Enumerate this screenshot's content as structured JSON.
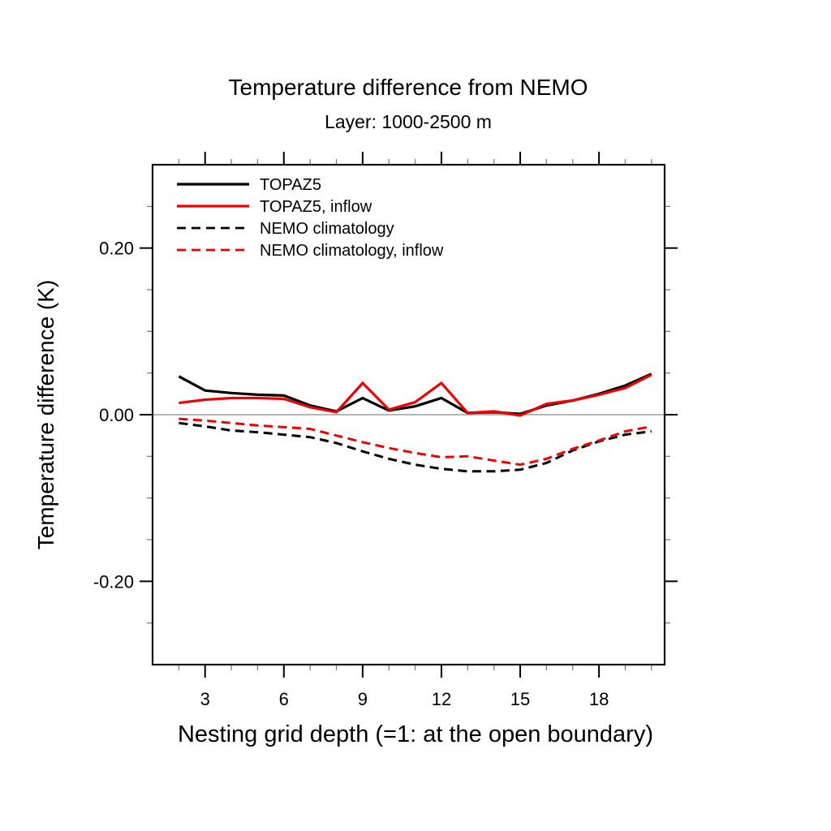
{
  "title": "Temperature difference from NEMO",
  "subtitle": "Layer: 1000-2500 m",
  "xlabel": "Nesting grid depth (=1: at the open boundary)",
  "ylabel": "Temperature difference (K)",
  "colors": {
    "black_series": "#000000",
    "red_series": "#f00000",
    "zero_line": "#ababab",
    "minor_tick": "#7f7f7f",
    "major_tick": "#000000",
    "frame": "#111111",
    "text": "#000000",
    "background": "#ffffff"
  },
  "chart_data": {
    "type": "line",
    "x": [
      2,
      3,
      4,
      5,
      6,
      7,
      8,
      9,
      10,
      11,
      12,
      13,
      14,
      15,
      16,
      17,
      18,
      19,
      20
    ],
    "series": [
      {
        "name": "TOPAZ5",
        "color": "#000000",
        "style": "solid",
        "values": [
          0.046,
          0.029,
          0.026,
          0.024,
          0.023,
          0.011,
          0.004,
          0.02,
          0.005,
          0.01,
          0.02,
          0.002,
          0.003,
          0.001,
          0.011,
          0.017,
          0.025,
          0.035,
          0.049
        ]
      },
      {
        "name": "TOPAZ5, inflow",
        "color": "#f00000",
        "style": "solid",
        "values": [
          0.014,
          0.018,
          0.02,
          0.02,
          0.019,
          0.009,
          0.003,
          0.038,
          0.006,
          0.015,
          0.038,
          0.002,
          0.004,
          -0.001,
          0.013,
          0.017,
          0.024,
          0.032,
          0.048
        ]
      },
      {
        "name": "NEMO climatology",
        "color": "#000000",
        "style": "dashed",
        "values": [
          -0.01,
          -0.014,
          -0.019,
          -0.021,
          -0.024,
          -0.027,
          -0.034,
          -0.044,
          -0.053,
          -0.06,
          -0.065,
          -0.068,
          -0.068,
          -0.066,
          -0.058,
          -0.043,
          -0.032,
          -0.024,
          -0.02
        ]
      },
      {
        "name": "NEMO climatology, inflow",
        "color": "#f00000",
        "style": "dashed",
        "values": [
          -0.005,
          -0.007,
          -0.01,
          -0.013,
          -0.015,
          -0.017,
          -0.025,
          -0.033,
          -0.04,
          -0.046,
          -0.051,
          -0.05,
          -0.055,
          -0.06,
          -0.053,
          -0.041,
          -0.031,
          -0.02,
          -0.014
        ]
      }
    ],
    "xlim": [
      1,
      20.5
    ],
    "ylim": [
      -0.3,
      0.3
    ],
    "x_major_ticks": [
      3,
      6,
      9,
      12,
      15,
      18
    ],
    "x_major_labels": [
      "3",
      "6",
      "9",
      "12",
      "15",
      "18"
    ],
    "x_minor_ticks": [
      2,
      4,
      5,
      7,
      8,
      10,
      11,
      13,
      14,
      16,
      17,
      19,
      20
    ],
    "y_major_ticks": [
      0.2,
      0.0,
      -0.2
    ],
    "y_major_labels": [
      "0.20",
      "0.00",
      "-0.20"
    ],
    "y_minor_ticks": [
      0.25,
      0.15,
      0.1,
      0.05,
      -0.05,
      -0.1,
      -0.15,
      -0.25
    ],
    "zero_line": true,
    "grid": false,
    "legend_position": "top-left"
  }
}
